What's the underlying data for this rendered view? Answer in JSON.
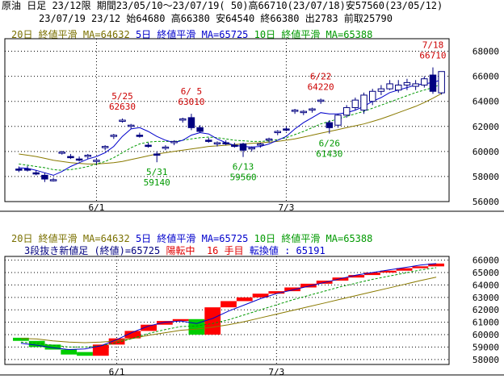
{
  "header": {
    "line1": "原油 日足 23/12限 期間23/05/10～23/07/19( 50)高66710(23/07/18)安57560(23/05/12)",
    "line2": "23/07/19 23/12 始64680 高66380 安64540 終66380 出2783 前取25790"
  },
  "top_panel": {
    "ma_legend": {
      "ma20": "20日 終値平滑 MA=64632",
      "ma5": "5日 終値平滑 MA=65725",
      "ma10": "10日 終値平滑 MA=65388"
    },
    "y_ticks": [
      "68000",
      "66000",
      "64000",
      "62000",
      "60000",
      "58000",
      "56000"
    ],
    "x_ticks": [
      "6/1",
      "7/3"
    ],
    "annotations": [
      {
        "date": "5/25",
        "value": "62630",
        "color": "#cc0000"
      },
      {
        "date": "6/ 5",
        "value": "63010",
        "color": "#cc0000"
      },
      {
        "date": "6/22",
        "value": "64220",
        "color": "#cc0000"
      },
      {
        "date": "7/18",
        "value": "66710",
        "color": "#cc0000"
      },
      {
        "date": "5/31",
        "value": "59140",
        "color": "#009900"
      },
      {
        "date": "6/13",
        "value": "59560",
        "color": "#009900"
      },
      {
        "date": "6/26",
        "value": "61430",
        "color": "#009900"
      }
    ]
  },
  "bottom_panel": {
    "ma_legend": {
      "ma20": "20日 終値平滑 MA=64632",
      "ma5": "5日 終値平滑 MA=65725",
      "ma10": "10日 終値平滑 MA=65388"
    },
    "renko_title": "3段抜き新値足 (終値)=65725",
    "renko_status": "陽転中",
    "renko_count": "16 手目",
    "renko_reversal": "転換値 : 65191",
    "y_ticks": [
      "66000",
      "65000",
      "64000",
      "63000",
      "62000",
      "61000",
      "60000",
      "59000",
      "58000"
    ],
    "x_ticks": [
      "6/1",
      "7/3"
    ]
  },
  "chart_data": [
    {
      "type": "candlestick",
      "title": "原油 日足 23/12限",
      "ylim": [
        56000,
        69000
      ],
      "x_labels": [
        "6/1",
        "7/3"
      ],
      "candles": [
        {
          "o": 58600,
          "h": 58800,
          "l": 58350,
          "c": 58500
        },
        {
          "o": 58600,
          "h": 58850,
          "l": 58400,
          "c": 58550
        },
        {
          "o": 58300,
          "h": 58500,
          "l": 58100,
          "c": 58200
        },
        {
          "o": 58100,
          "h": 58300,
          "l": 57560,
          "c": 57800
        },
        {
          "o": 57700,
          "h": 57900,
          "l": 57600,
          "c": 57750
        },
        {
          "o": 59900,
          "h": 60050,
          "l": 59750,
          "c": 59950
        },
        {
          "o": 59600,
          "h": 59800,
          "l": 59400,
          "c": 59500
        },
        {
          "o": 59400,
          "h": 59600,
          "l": 59200,
          "c": 59350
        },
        {
          "o": 59600,
          "h": 59800,
          "l": 59400,
          "c": 59700
        },
        {
          "o": 59200,
          "h": 59400,
          "l": 59000,
          "c": 59300
        },
        {
          "o": 60300,
          "h": 60500,
          "l": 60100,
          "c": 60400
        },
        {
          "o": 61200,
          "h": 61400,
          "l": 61000,
          "c": 61300
        },
        {
          "o": 62400,
          "h": 62630,
          "l": 62300,
          "c": 62500
        },
        {
          "o": 62000,
          "h": 62200,
          "l": 61800,
          "c": 62100
        },
        {
          "o": 61300,
          "h": 61500,
          "l": 61100,
          "c": 61200
        },
        {
          "o": 60500,
          "h": 60700,
          "l": 60300,
          "c": 60400
        },
        {
          "o": 59800,
          "h": 60000,
          "l": 59140,
          "c": 59700
        },
        {
          "o": 60300,
          "h": 60500,
          "l": 60100,
          "c": 60350
        },
        {
          "o": 60700,
          "h": 60900,
          "l": 60500,
          "c": 60800
        },
        {
          "o": 62500,
          "h": 62700,
          "l": 62300,
          "c": 62600
        },
        {
          "o": 62700,
          "h": 63010,
          "l": 61700,
          "c": 61900
        },
        {
          "o": 61900,
          "h": 62100,
          "l": 61500,
          "c": 61600
        },
        {
          "o": 60900,
          "h": 61100,
          "l": 60700,
          "c": 60800
        },
        {
          "o": 60600,
          "h": 60800,
          "l": 60400,
          "c": 60700
        },
        {
          "o": 60700,
          "h": 60900,
          "l": 60500,
          "c": 60600
        },
        {
          "o": 60500,
          "h": 60700,
          "l": 60300,
          "c": 60400
        },
        {
          "o": 60600,
          "h": 60700,
          "l": 59560,
          "c": 60100
        },
        {
          "o": 60200,
          "h": 60400,
          "l": 60000,
          "c": 60300
        },
        {
          "o": 60500,
          "h": 60700,
          "l": 60300,
          "c": 60600
        },
        {
          "o": 60900,
          "h": 61100,
          "l": 60700,
          "c": 61000
        },
        {
          "o": 61500,
          "h": 61700,
          "l": 61300,
          "c": 61600
        },
        {
          "o": 61800,
          "h": 62000,
          "l": 61600,
          "c": 61700
        },
        {
          "o": 63200,
          "h": 63400,
          "l": 63000,
          "c": 63300
        },
        {
          "o": 63100,
          "h": 63300,
          "l": 62900,
          "c": 63200
        },
        {
          "o": 63300,
          "h": 63500,
          "l": 63100,
          "c": 63400
        },
        {
          "o": 64000,
          "h": 64220,
          "l": 63800,
          "c": 64100
        },
        {
          "o": 62300,
          "h": 62500,
          "l": 61430,
          "c": 61900
        },
        {
          "o": 62100,
          "h": 63000,
          "l": 61900,
          "c": 62900
        },
        {
          "o": 62900,
          "h": 63700,
          "l": 62700,
          "c": 63500
        },
        {
          "o": 63500,
          "h": 64300,
          "l": 63300,
          "c": 64100
        },
        {
          "o": 63300,
          "h": 64700,
          "l": 63000,
          "c": 64500
        },
        {
          "o": 64000,
          "h": 65000,
          "l": 63700,
          "c": 64800
        },
        {
          "o": 64800,
          "h": 65300,
          "l": 64500,
          "c": 65000
        },
        {
          "o": 65000,
          "h": 65700,
          "l": 64900,
          "c": 65400
        },
        {
          "o": 64900,
          "h": 65700,
          "l": 64700,
          "c": 65300
        },
        {
          "o": 65300,
          "h": 65800,
          "l": 64900,
          "c": 65500
        },
        {
          "o": 65200,
          "h": 65700,
          "l": 64900,
          "c": 65400
        },
        {
          "o": 65300,
          "h": 66000,
          "l": 65100,
          "c": 65800
        },
        {
          "o": 66100,
          "h": 66710,
          "l": 64600,
          "c": 64800
        },
        {
          "o": 64680,
          "h": 66380,
          "l": 64540,
          "c": 66380
        }
      ],
      "ma5": [
        58700,
        58650,
        58500,
        58300,
        58100,
        58400,
        58800,
        59100,
        59400,
        59600,
        59900,
        60400,
        61200,
        61800,
        61900,
        61600,
        61200,
        60900,
        60700,
        60900,
        61300,
        61500,
        61400,
        61000,
        60700,
        60500,
        60400,
        60350,
        60400,
        60600,
        60900,
        61200,
        61800,
        62300,
        62700,
        63100,
        63000,
        63000,
        63100,
        63300,
        63600,
        64000,
        64300,
        64700,
        64900,
        65100,
        65300,
        65400,
        65500,
        65725
      ],
      "ma10": [
        59000,
        58900,
        58800,
        58700,
        58550,
        58500,
        58550,
        58650,
        58800,
        59000,
        59200,
        59500,
        59900,
        60300,
        60600,
        60750,
        60800,
        60800,
        60800,
        60900,
        61000,
        61100,
        61150,
        61100,
        61000,
        60900,
        60850,
        60800,
        60800,
        60850,
        60950,
        61100,
        61350,
        61600,
        61900,
        62200,
        62400,
        62600,
        62800,
        63000,
        63200,
        63450,
        63700,
        63950,
        64200,
        64450,
        64700,
        64900,
        65100,
        65388
      ],
      "ma20": [
        59800,
        59700,
        59600,
        59450,
        59300,
        59200,
        59100,
        59050,
        59000,
        59000,
        59050,
        59100,
        59200,
        59350,
        59500,
        59650,
        59800,
        59900,
        60000,
        60100,
        60200,
        60300,
        60400,
        60450,
        60500,
        60550,
        60600,
        60650,
        60700,
        60750,
        60800,
        60900,
        61000,
        61150,
        61300,
        61450,
        61600,
        61750,
        61900,
        62050,
        62200,
        62400,
        62600,
        62850,
        63100,
        63350,
        63600,
        63900,
        64250,
        64632
      ]
    },
    {
      "type": "renko",
      "title": "3段抜き新値足 (終値)=65725",
      "ylim": [
        57600,
        66300
      ],
      "x_labels": [
        "6/1",
        "7/3"
      ],
      "blocks": [
        {
          "low": 59500,
          "high": 59750,
          "color": "green"
        },
        {
          "low": 59000,
          "high": 59500,
          "color": "green"
        },
        {
          "low": 58800,
          "high": 59200,
          "color": "green"
        },
        {
          "low": 58400,
          "high": 58800,
          "color": "green"
        },
        {
          "low": 58300,
          "high": 58600,
          "color": "green"
        },
        {
          "low": 58300,
          "high": 59200,
          "color": "red"
        },
        {
          "low": 59200,
          "high": 59700,
          "color": "red"
        },
        {
          "low": 59700,
          "high": 60300,
          "color": "red"
        },
        {
          "low": 60300,
          "high": 60800,
          "color": "red"
        },
        {
          "low": 60800,
          "high": 61100,
          "color": "red"
        },
        {
          "low": 61100,
          "high": 61250,
          "color": "red"
        },
        {
          "low": 60000,
          "high": 61250,
          "color": "green"
        },
        {
          "low": 60000,
          "high": 62200,
          "color": "red"
        },
        {
          "low": 62200,
          "high": 62700,
          "color": "red"
        },
        {
          "low": 62700,
          "high": 63000,
          "color": "red"
        },
        {
          "low": 63000,
          "high": 63300,
          "color": "red"
        },
        {
          "low": 63300,
          "high": 63500,
          "color": "red"
        },
        {
          "low": 63500,
          "high": 63800,
          "color": "red"
        },
        {
          "low": 63800,
          "high": 64100,
          "color": "red"
        },
        {
          "low": 64100,
          "high": 64350,
          "color": "red"
        },
        {
          "low": 64350,
          "high": 64600,
          "color": "red"
        },
        {
          "low": 64600,
          "high": 64800,
          "color": "red"
        },
        {
          "low": 64800,
          "high": 65000,
          "color": "red"
        },
        {
          "low": 65000,
          "high": 65150,
          "color": "red"
        },
        {
          "low": 65150,
          "high": 65350,
          "color": "red"
        },
        {
          "low": 65350,
          "high": 65500,
          "color": "red"
        },
        {
          "low": 65500,
          "high": 65725,
          "color": "red"
        }
      ],
      "ma5": [
        59300,
        59150,
        58950,
        58800,
        58850,
        59100,
        59600,
        60200,
        60700,
        61000,
        61100,
        60900,
        61300,
        61900,
        62400,
        62900,
        63300,
        63600,
        63900,
        64200,
        64500,
        64800,
        65000,
        65200,
        65400,
        65600,
        65725
      ],
      "ma10": [
        59400,
        59300,
        59150,
        59000,
        59000,
        59100,
        59350,
        59700,
        60100,
        60400,
        60650,
        60700,
        60900,
        61200,
        61600,
        62000,
        62400,
        62800,
        63150,
        63500,
        63850,
        64150,
        64450,
        64700,
        64950,
        65200,
        65388
      ],
      "ma20": [
        59700,
        59650,
        59500,
        59400,
        59350,
        59400,
        59500,
        59700,
        59950,
        60150,
        60350,
        60450,
        60600,
        60800,
        61050,
        61350,
        61650,
        61950,
        62250,
        62550,
        62850,
        63150,
        63450,
        63750,
        64050,
        64350,
        64632
      ]
    }
  ]
}
